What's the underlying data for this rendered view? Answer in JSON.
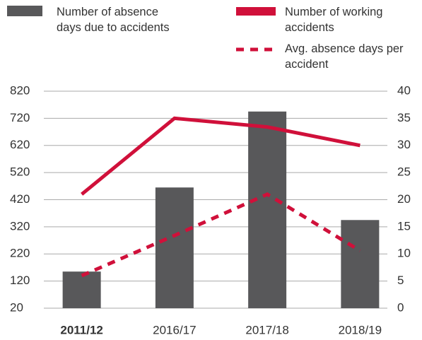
{
  "chart_data": {
    "type": "bar_line",
    "categories": [
      "2011/12",
      "2016/17",
      "2017/18",
      "2018/19"
    ],
    "series": [
      {
        "name": "Number of absence days due to accidents",
        "color": "#58585a",
        "type": "bar",
        "values": [
          155,
          465,
          745,
          345
        ]
      },
      {
        "name": "Number of working accidents",
        "color": "#d0103a",
        "type": "line",
        "axis": "y2",
        "values": [
          21,
          35,
          33.4,
          30
        ]
      },
      {
        "name": "Avg. absence days per accident",
        "color": "#d0103a",
        "type": "dashed",
        "axis": "y2",
        "values": [
          6,
          13.4,
          21,
          10.6
        ]
      }
    ],
    "ylim": [
      20,
      820
    ],
    "yticks": [
      20,
      120,
      220,
      320,
      420,
      520,
      620,
      720,
      820
    ],
    "y2lim": [
      0,
      40
    ],
    "y2ticks": [
      0,
      5,
      10,
      15,
      20,
      25,
      30,
      35,
      40
    ],
    "grid": true
  }
}
